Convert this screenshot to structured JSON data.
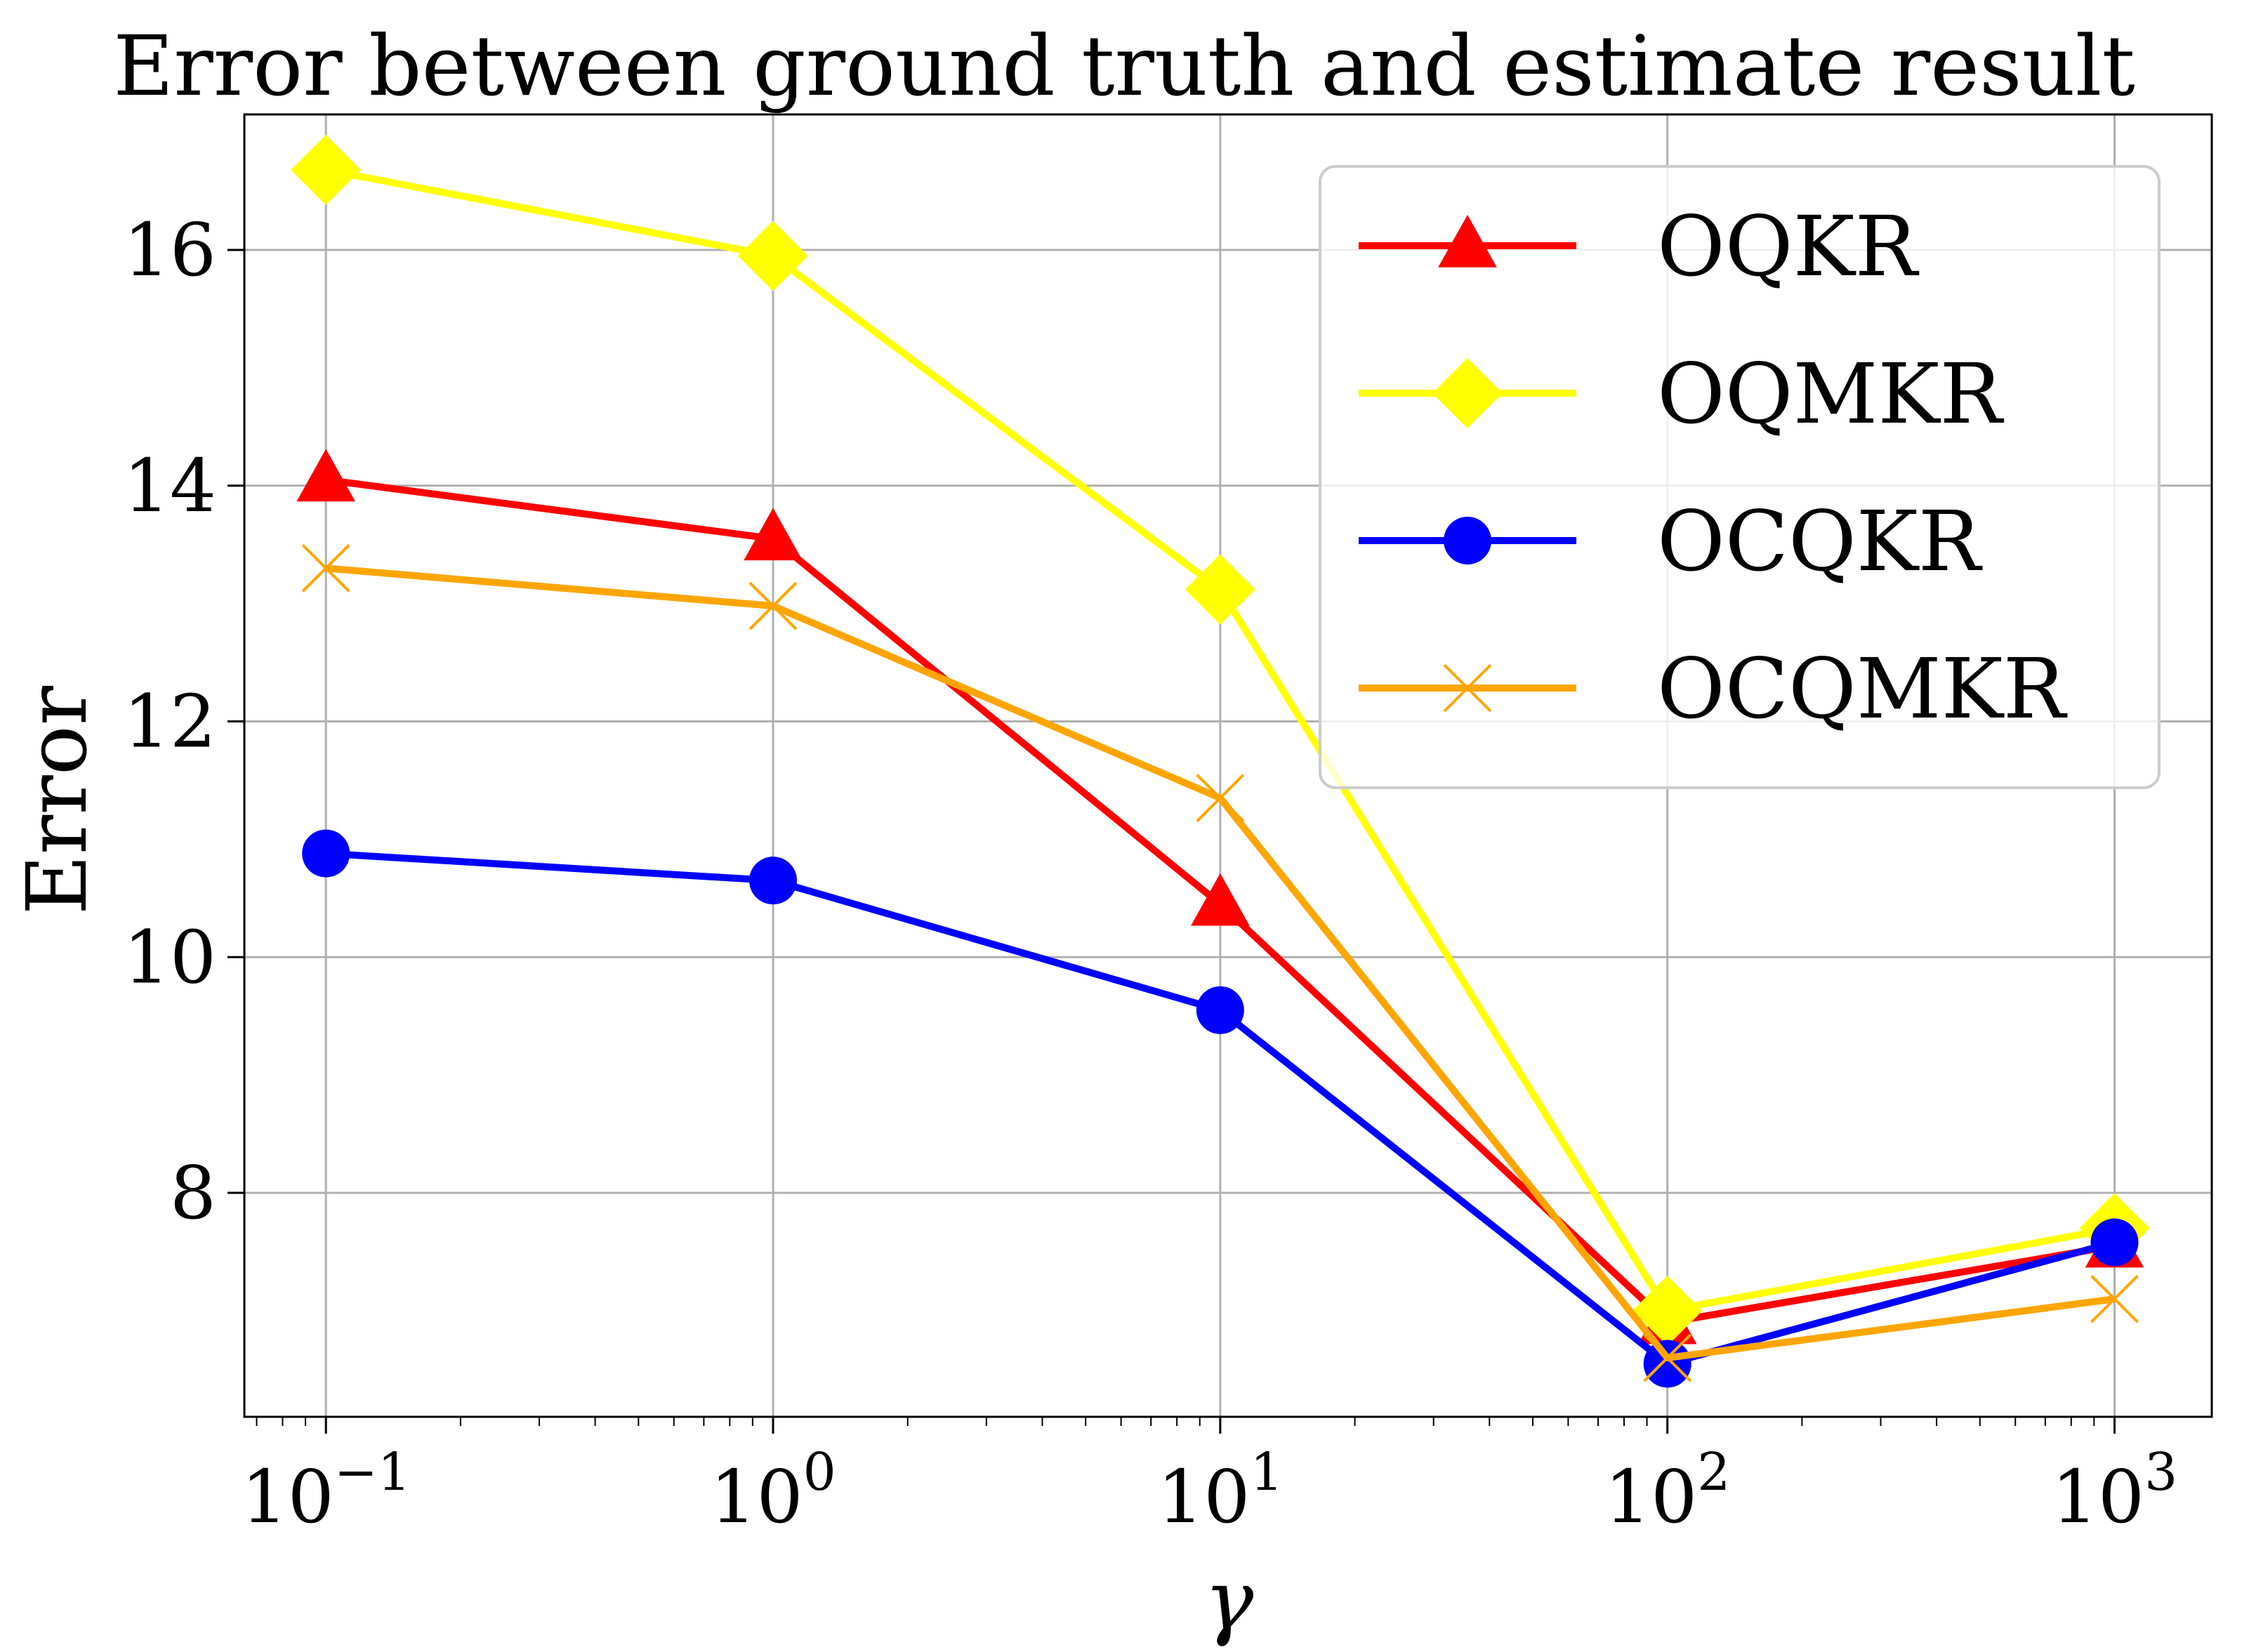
{
  "chart_data": {
    "type": "line",
    "title": "Error between ground truth and estimate result",
    "xlabel": "γ",
    "ylabel": "Error",
    "xscale": "log",
    "x": [
      0.1,
      1,
      10,
      100,
      1000
    ],
    "x_tick_labels": [
      {
        "base": "10",
        "exp": "−1"
      },
      {
        "base": "10",
        "exp": "0"
      },
      {
        "base": "10",
        "exp": "1"
      },
      {
        "base": "10",
        "exp": "2"
      },
      {
        "base": "10",
        "exp": "3"
      }
    ],
    "xlim": [
      0.0657,
      1650
    ],
    "yticks": [
      8,
      10,
      12,
      14,
      16
    ],
    "ylim": [
      6.1,
      17.15
    ],
    "grid": true,
    "legend_position": "top-right",
    "series": [
      {
        "name": "OQKR",
        "color": "#ff0000",
        "marker": "triangle",
        "values": [
          14.05,
          13.55,
          10.45,
          6.9,
          7.55
        ]
      },
      {
        "name": "OQMKR",
        "color": "#ffff00",
        "marker": "diamond",
        "values": [
          16.68,
          15.95,
          13.12,
          7.0,
          7.7
        ]
      },
      {
        "name": "OCQKR",
        "color": "#0000ff",
        "marker": "circle",
        "values": [
          10.88,
          10.65,
          9.55,
          6.55,
          7.58
        ]
      },
      {
        "name": "OCQMKR",
        "color": "#ffa500",
        "marker": "x",
        "values": [
          13.3,
          12.98,
          11.35,
          6.6,
          7.1
        ]
      }
    ]
  }
}
